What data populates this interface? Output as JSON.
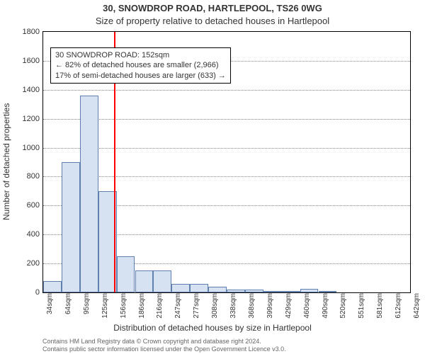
{
  "title_line1": "30, SNOWDROP ROAD, HARTLEPOOL, TS26 0WG",
  "title_line2": "Size of property relative to detached houses in Hartlepool",
  "ylabel": "Number of detached properties",
  "xlabel": "Distribution of detached houses by size in Hartlepool",
  "footer_line1": "Contains HM Land Registry data © Crown copyright and database right 2024.",
  "footer_line2": "Contains public sector information licensed under the Open Government Licence v3.0.",
  "chart": {
    "type": "histogram",
    "ylim": [
      0,
      1800
    ],
    "ytick_step": 200,
    "background_color": "#ffffff",
    "grid_color": "#808080",
    "grid_style": "dotted",
    "bar_fill": "#d6e1f2",
    "bar_stroke": "#6080b0",
    "xticks": [
      "34sqm",
      "64sqm",
      "95sqm",
      "125sqm",
      "156sqm",
      "186sqm",
      "216sqm",
      "247sqm",
      "277sqm",
      "308sqm",
      "338sqm",
      "368sqm",
      "399sqm",
      "429sqm",
      "460sqm",
      "490sqm",
      "520sqm",
      "551sqm",
      "581sqm",
      "612sqm",
      "642sqm"
    ],
    "values": [
      80,
      900,
      1360,
      700,
      250,
      150,
      150,
      60,
      60,
      40,
      20,
      20,
      5,
      10,
      25,
      5,
      0,
      0,
      0,
      0
    ],
    "marker": {
      "sqm": 152,
      "color": "#ff0000",
      "width": 2,
      "bin_index_after": 3,
      "fraction_into_bin": 0.87
    },
    "annotation": {
      "lines": [
        "30 SNOWDROP ROAD: 152sqm",
        "← 82% of detached houses are smaller (2,966)",
        "17% of semi-detached houses are larger (633) →"
      ],
      "border_color": "#000000",
      "background": "#ffffff",
      "fontsize": 11
    }
  }
}
